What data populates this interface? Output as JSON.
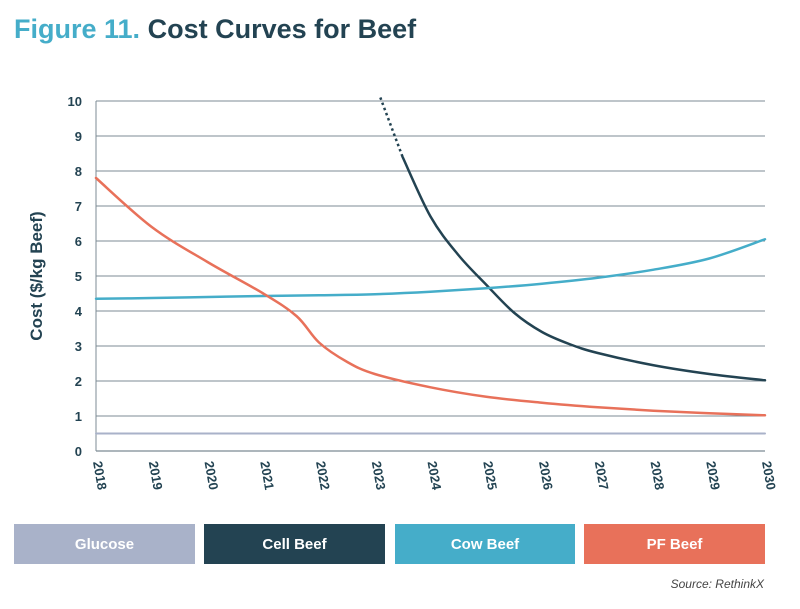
{
  "figure": {
    "title_prefix": "Figure 11.",
    "title_text": "Cost Curves for Beef",
    "source": "Source: RethinkX"
  },
  "chart_data": {
    "type": "line",
    "title": "Figure 11. Cost Curves for Beef",
    "ylabel": "Cost ($/kg Beef)",
    "xlabel": "",
    "xlim": [
      2018,
      2030
    ],
    "ylim": [
      0,
      10
    ],
    "x_ticks": [
      "2018",
      "2019",
      "2020",
      "2021",
      "2022",
      "2023",
      "2024",
      "2025",
      "2026",
      "2027",
      "2028",
      "2029",
      "2030"
    ],
    "y_ticks": [
      "0",
      "1",
      "2",
      "3",
      "4",
      "5",
      "6",
      "7",
      "8",
      "9",
      "10"
    ],
    "grid": true,
    "legend_position": "bottom",
    "series": [
      {
        "name": "Glucose",
        "color": "#a9b2c9",
        "x": [
          2018,
          2030
        ],
        "y": [
          0.5,
          0.5
        ]
      },
      {
        "name": "Cell Beef",
        "color": "#234352",
        "dotted_segment": {
          "x": [
            2023.1,
            2023.5
          ],
          "y": [
            10.1,
            8.4
          ]
        },
        "x": [
          2023.5,
          2024.0,
          2024.5,
          2025.0,
          2025.5,
          2026.0,
          2026.5,
          2027.0,
          2028.0,
          2029.0,
          2030.0
        ],
        "y": [
          8.4,
          6.7,
          5.6,
          4.75,
          3.95,
          3.4,
          3.05,
          2.8,
          2.45,
          2.2,
          2.02
        ]
      },
      {
        "name": "Cow Beef",
        "color": "#45adc9",
        "x": [
          2018,
          2019,
          2020,
          2021,
          2022,
          2023,
          2024,
          2025,
          2026,
          2027,
          2028,
          2029,
          2030
        ],
        "y": [
          4.35,
          4.37,
          4.4,
          4.43,
          4.45,
          4.48,
          4.55,
          4.65,
          4.78,
          4.95,
          5.18,
          5.5,
          6.05
        ]
      },
      {
        "name": "PF Beef",
        "color": "#e8715a",
        "x": [
          2018,
          2019,
          2020,
          2021,
          2021.6,
          2022,
          2022.5,
          2023,
          2024,
          2025,
          2026,
          2027,
          2028,
          2029,
          2030
        ],
        "y": [
          7.8,
          6.4,
          5.4,
          4.5,
          3.85,
          3.1,
          2.55,
          2.2,
          1.82,
          1.55,
          1.38,
          1.25,
          1.15,
          1.08,
          1.02
        ]
      }
    ]
  }
}
